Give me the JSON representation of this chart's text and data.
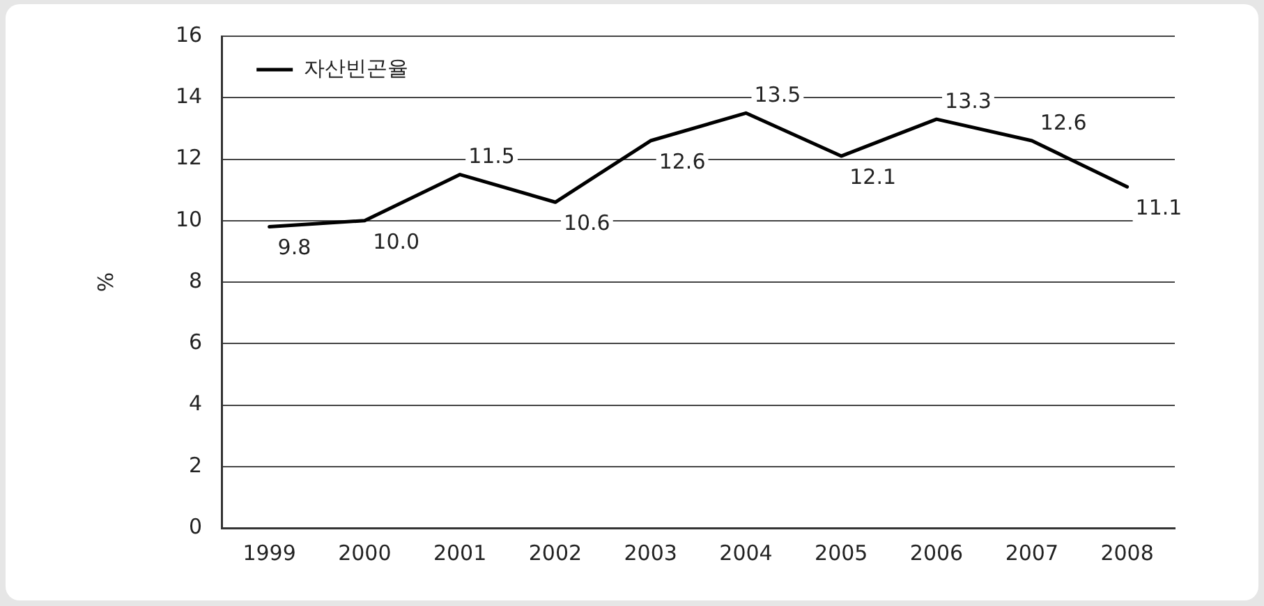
{
  "chart_data": {
    "type": "line",
    "ylabel": "%",
    "categories": [
      "1999",
      "2000",
      "2001",
      "2002",
      "2003",
      "2004",
      "2005",
      "2006",
      "2007",
      "2008"
    ],
    "series": [
      {
        "name": "자산빈곤율",
        "color": "#000000",
        "values": [
          9.8,
          10.0,
          11.5,
          10.6,
          12.6,
          13.5,
          12.1,
          13.3,
          12.6,
          11.1
        ],
        "value_labels": [
          "9.8",
          "10.0",
          "11.5",
          "10.6",
          "12.6",
          "13.5",
          "12.1",
          "13.3",
          "12.6",
          "11.1"
        ]
      }
    ],
    "ylim": [
      0,
      16
    ],
    "yticks": [
      0,
      2,
      4,
      6,
      8,
      10,
      12,
      14,
      16
    ],
    "grid": "y",
    "legend": "top left",
    "marker": "none",
    "line_style": "solid"
  }
}
